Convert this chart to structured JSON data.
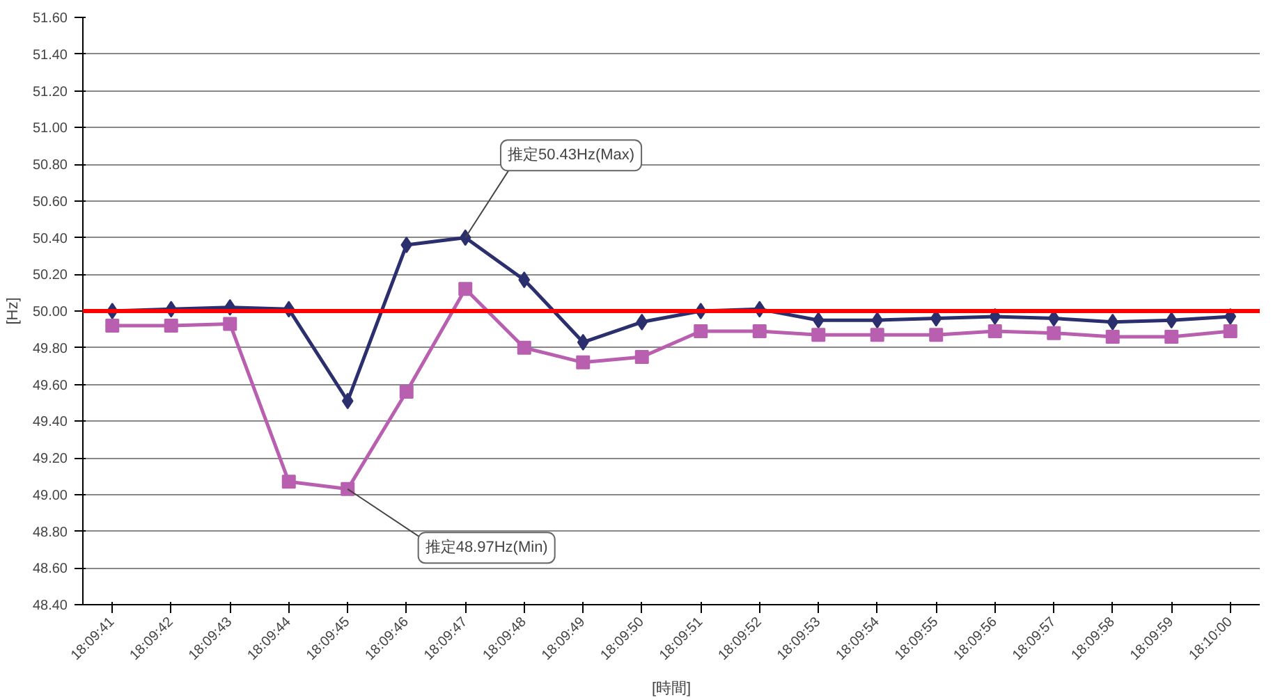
{
  "chart_data": {
    "type": "line",
    "xlabel": "[時間]",
    "ylabel": "[Hz]",
    "categories": [
      "18:09:41",
      "18:09:42",
      "18:09:43",
      "18:09:44",
      "18:09:45",
      "18:09:46",
      "18:09:47",
      "18:09:48",
      "18:09:49",
      "18:09:50",
      "18:09:51",
      "18:09:52",
      "18:09:53",
      "18:09:54",
      "18:09:55",
      "18:09:56",
      "18:09:57",
      "18:09:58",
      "18:09:59",
      "18:10:00"
    ],
    "series": [
      {
        "color": "#2b2f6e",
        "marker": "diamond",
        "values": [
          50.0,
          50.01,
          50.02,
          50.01,
          49.51,
          50.36,
          50.4,
          50.17,
          49.83,
          49.94,
          50.0,
          50.01,
          49.95,
          49.95,
          49.96,
          49.97,
          49.96,
          49.94,
          49.95,
          49.97
        ]
      },
      {
        "color": "#b85fb0",
        "marker": "square",
        "values": [
          49.92,
          49.92,
          49.93,
          49.07,
          49.03,
          49.56,
          50.12,
          49.8,
          49.72,
          49.75,
          49.89,
          49.89,
          49.87,
          49.87,
          49.87,
          49.89,
          49.88,
          49.86,
          49.86,
          49.89
        ]
      }
    ],
    "ylim": [
      48.4,
      51.6
    ],
    "yticks": [
      {
        "value": 48.4,
        "label": "48.40"
      },
      {
        "value": 48.6,
        "label": "48.60"
      },
      {
        "value": 48.8,
        "label": "48.80"
      },
      {
        "value": 49.0,
        "label": "49.00"
      },
      {
        "value": 49.2,
        "label": "49.20"
      },
      {
        "value": 49.4,
        "label": "49.40"
      },
      {
        "value": 49.6,
        "label": "49.60"
      },
      {
        "value": 49.8,
        "label": "49.80"
      },
      {
        "value": 50.0,
        "label": "50.00"
      },
      {
        "value": 50.2,
        "label": "50.20"
      },
      {
        "value": 50.4,
        "label": "50.40"
      },
      {
        "value": 50.6,
        "label": "50.60"
      },
      {
        "value": 50.8,
        "label": "50.80"
      },
      {
        "value": 51.0,
        "label": "51.00"
      },
      {
        "value": 51.2,
        "label": "51.20"
      },
      {
        "value": 51.4,
        "label": "51.40"
      },
      {
        "value": 51.6,
        "label": "51.60"
      }
    ],
    "grid": "y",
    "ref_lines": [
      {
        "axis": "y",
        "value": 50.0,
        "color": "#ff0000"
      }
    ],
    "annotations": [
      {
        "text": "推定50.43Hz(Max)",
        "x": "18:09:47",
        "y": 50.4
      },
      {
        "text": "推定48.97Hz(Min)",
        "x": "18:09:45",
        "y": 49.03
      }
    ]
  }
}
